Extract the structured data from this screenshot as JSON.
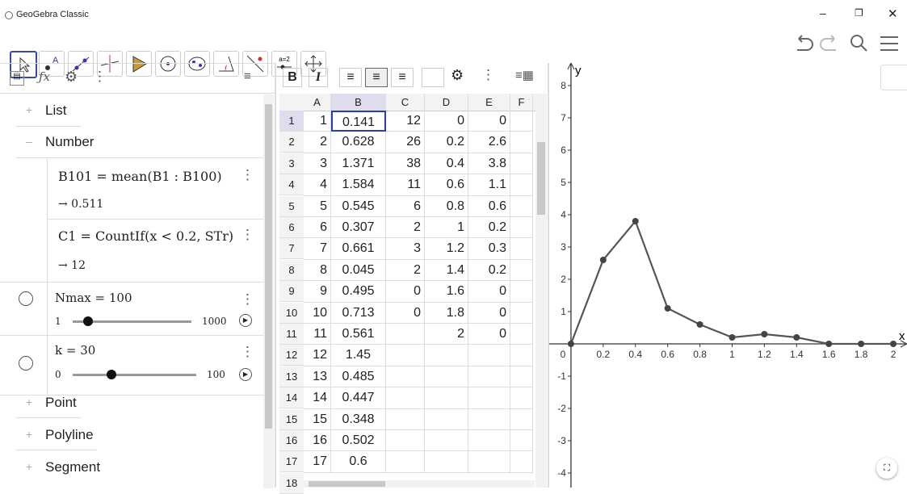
{
  "window": {
    "title": "GeoGebra Classic"
  },
  "toolbar": {
    "tool_label": "a=2"
  },
  "algebra": {
    "groups": [
      "List",
      "Number",
      "Point",
      "Polyline",
      "Segment"
    ],
    "items": [
      {
        "definition": "B101 = mean(B1 : B100)",
        "value": "→ 0.511"
      },
      {
        "definition": "C1 = CountIf(x < 0.2, STr)",
        "value": "→ 12"
      }
    ],
    "sliders": [
      {
        "definition": "Nmax = 100",
        "min": 1,
        "max": 1000
      },
      {
        "definition": "k = 30",
        "min": 0,
        "max": 100
      }
    ]
  },
  "spreadsheet": {
    "buttons": [
      "B",
      "I"
    ],
    "columns": [
      "A",
      "B",
      "C",
      "D",
      "E",
      "F"
    ],
    "row_numbers": [
      1,
      2,
      3,
      4,
      5,
      6,
      7,
      8,
      9,
      10,
      11,
      12,
      13,
      14,
      15,
      16,
      17,
      18
    ],
    "rows": [
      [
        1,
        0.141,
        12,
        0,
        0
      ],
      [
        2,
        0.628,
        26,
        0.2,
        2.6
      ],
      [
        3,
        1.371,
        38,
        0.4,
        3.8
      ],
      [
        4,
        1.584,
        11,
        0.6,
        1.1
      ],
      [
        5,
        0.545,
        6,
        0.8,
        0.6
      ],
      [
        6,
        0.307,
        2,
        1,
        0.2
      ],
      [
        7,
        0.661,
        3,
        1.2,
        0.3
      ],
      [
        8,
        0.045,
        2,
        1.4,
        0.2
      ],
      [
        9,
        0.495,
        0,
        1.6,
        0
      ],
      [
        10,
        0.713,
        0,
        1.8,
        0
      ],
      [
        11,
        0.561,
        null,
        2,
        0
      ],
      [
        12,
        1.45
      ],
      [
        13,
        0.485
      ],
      [
        14,
        0.447
      ],
      [
        15,
        0.348
      ],
      [
        16,
        0.502
      ],
      [
        17,
        0.6
      ]
    ]
  },
  "graphics": {
    "x_label": "x",
    "y_label": "y",
    "x": [
      0,
      0.2,
      0.4,
      0.6,
      0.8,
      1,
      1.2,
      1.4,
      1.6,
      1.8,
      2
    ],
    "y": [
      0,
      2.6,
      3.8,
      1.1,
      0.6,
      0.2,
      0.3,
      0.2,
      0,
      0,
      0
    ],
    "xlim": [
      -0.135,
      2.085
    ],
    "ylim": [
      -4.45,
      8.7
    ],
    "xticks": [
      0,
      0.2,
      0.4,
      0.6,
      0.8,
      1,
      1.2,
      1.4,
      1.6,
      1.8,
      2
    ],
    "yticks": [
      -4,
      -3,
      -2,
      -1,
      1,
      2,
      3,
      4,
      5,
      6,
      7,
      8
    ]
  }
}
